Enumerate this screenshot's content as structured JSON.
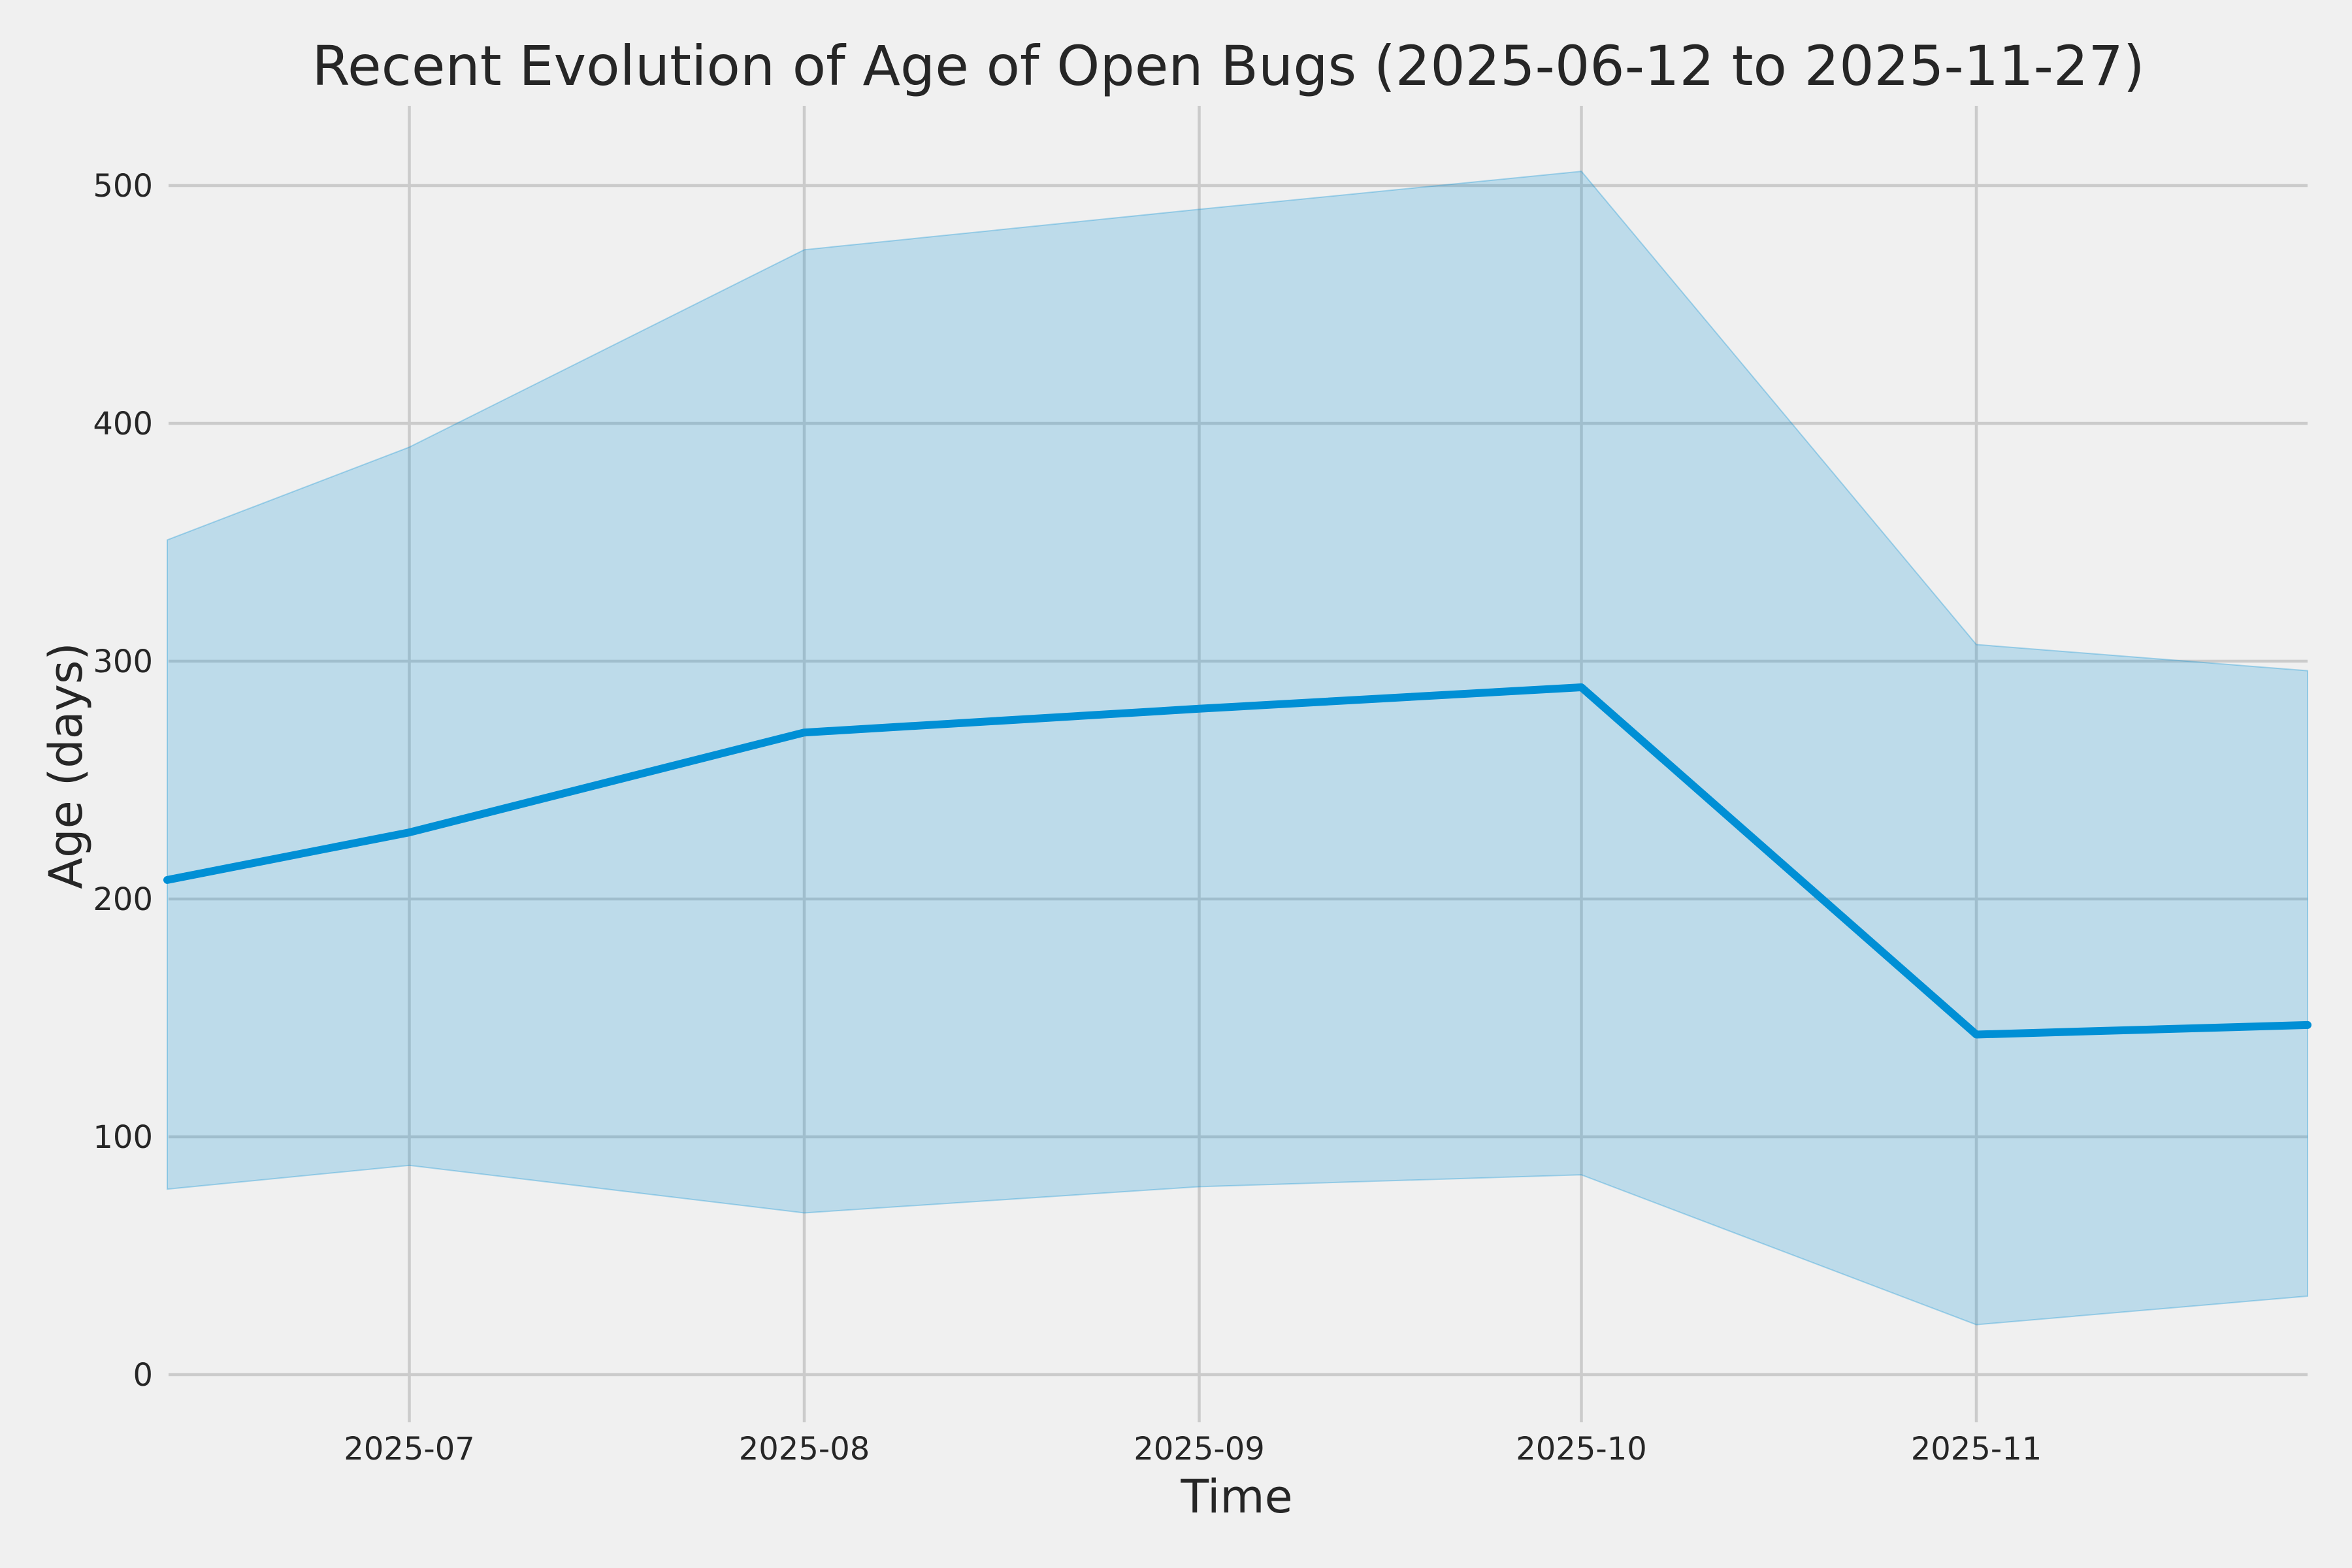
{
  "figure": {
    "background_color": "#f0f0f0",
    "grid_color": "#cbcbcb",
    "text_color": "#262626"
  },
  "chart_data": {
    "type": "line",
    "title": "Recent Evolution of Age of Open Bugs (2025-06-12 to 2025-11-27)",
    "xlabel": "Time",
    "ylabel": "Age (days)",
    "x": [
      "2025-06-12",
      "2025-07-01",
      "2025-08-01",
      "2025-09-01",
      "2025-10-01",
      "2025-11-01",
      "2025-11-27"
    ],
    "series": [
      {
        "name": "mean_age_days",
        "role": "line",
        "color": "#008fd5",
        "values": [
          208,
          228,
          270,
          280,
          289,
          143,
          147
        ]
      },
      {
        "name": "band_upper_days",
        "role": "band-upper",
        "values": [
          351,
          390,
          473,
          490,
          506,
          307,
          296
        ]
      },
      {
        "name": "band_lower_days",
        "role": "band-lower",
        "values": [
          78,
          88,
          68,
          79,
          84,
          21,
          33
        ]
      }
    ],
    "band_fill": "rgba(0,143,213,0.21)",
    "band_edge": "rgba(0,143,213,0.30)",
    "x_ticks": [
      {
        "date": "2025-07-01",
        "label": "2025-07"
      },
      {
        "date": "2025-08-01",
        "label": "2025-08"
      },
      {
        "date": "2025-09-01",
        "label": "2025-09"
      },
      {
        "date": "2025-10-01",
        "label": "2025-10"
      },
      {
        "date": "2025-11-01",
        "label": "2025-11"
      }
    ],
    "y_ticks": [
      0,
      100,
      200,
      300,
      400,
      500
    ],
    "xlim": [
      "2025-06-12",
      "2025-11-27"
    ],
    "ylim": [
      -20,
      533
    ],
    "grid": true,
    "legend": "none"
  }
}
